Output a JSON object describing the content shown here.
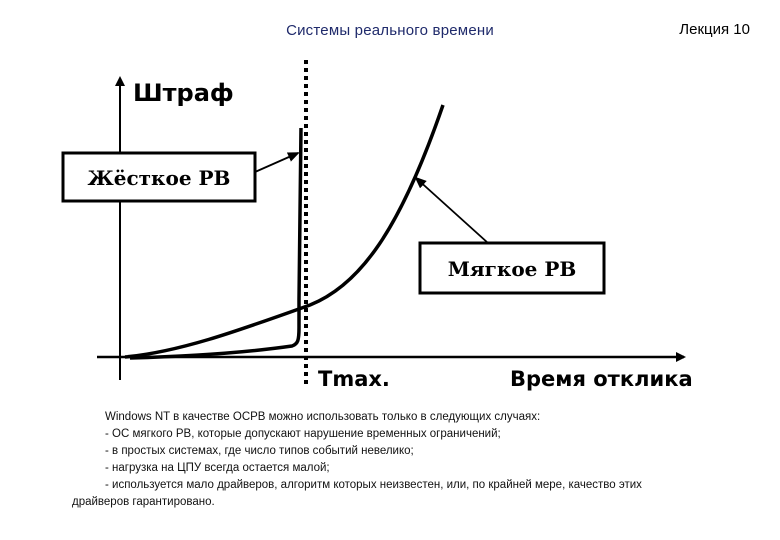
{
  "header": {
    "title": "Системы реального времени",
    "lecture": "Лекция 10"
  },
  "diagram": {
    "y_axis_label": "Штраф",
    "x_axis_label": "Время отклика",
    "tmax_label": "Tmax.",
    "hard_rt_label": "Жёсткое РВ",
    "soft_rt_label": "Мягкое РВ"
  },
  "text": {
    "intro": "Windows NT в качестве ОСРВ можно использовать только в следующих случаях:",
    "items": [
      "- ОС мягкого РВ, которые допускают нарушение временных ограничений;",
      "- в простых системах, где число типов событий невелико;",
      "- нагрузка на ЦПУ всегда остается малой;",
      "- используется мало драйверов, алгоритм которых неизвестен, или, по крайней мере, качество этих"
    ],
    "continuation": "драйверов гарантировано."
  }
}
